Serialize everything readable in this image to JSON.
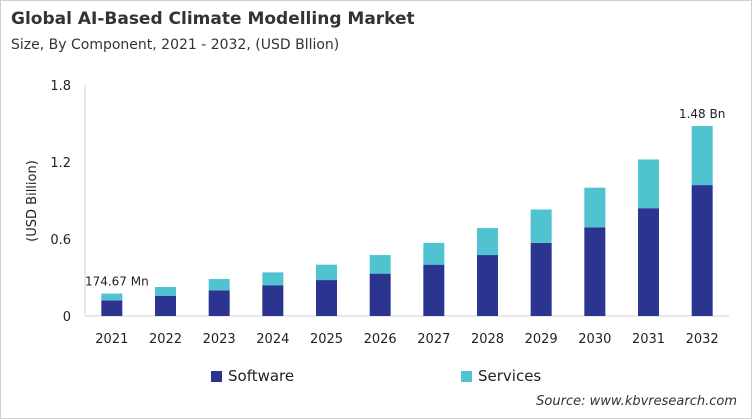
{
  "title": "Global AI-Based Climate Modelling Market",
  "subtitle": "Size, By Component, 2021 - 2032, (USD Bllion)",
  "source": "Source: www.kbvresearch.com",
  "chart_data": {
    "type": "bar",
    "stacked": true,
    "ylabel": "(USD Billion)",
    "ylim": [
      0,
      1.8
    ],
    "yticks": [
      0,
      0.6,
      1.2,
      1.8
    ],
    "ytick_labels": [
      "0",
      "0.6",
      "1.2",
      "1.8"
    ],
    "grid": false,
    "legend_position": "bottom",
    "categories": [
      "2021",
      "2022",
      "2023",
      "2024",
      "2025",
      "2026",
      "2027",
      "2028",
      "2029",
      "2030",
      "2031",
      "2032"
    ],
    "series": [
      {
        "name": "Software",
        "color": "#2b3590",
        "values": [
          0.122,
          0.158,
          0.2,
          0.24,
          0.28,
          0.33,
          0.4,
          0.475,
          0.57,
          0.69,
          0.84,
          1.02
        ]
      },
      {
        "name": "Services",
        "color": "#4fc4d0",
        "values": [
          0.053,
          0.068,
          0.088,
          0.1,
          0.12,
          0.145,
          0.17,
          0.21,
          0.26,
          0.31,
          0.38,
          0.46
        ]
      }
    ],
    "annotations": [
      {
        "category": "2021",
        "text": "174.67 Mn"
      },
      {
        "category": "2032",
        "text": "1.48 Bn"
      }
    ]
  }
}
